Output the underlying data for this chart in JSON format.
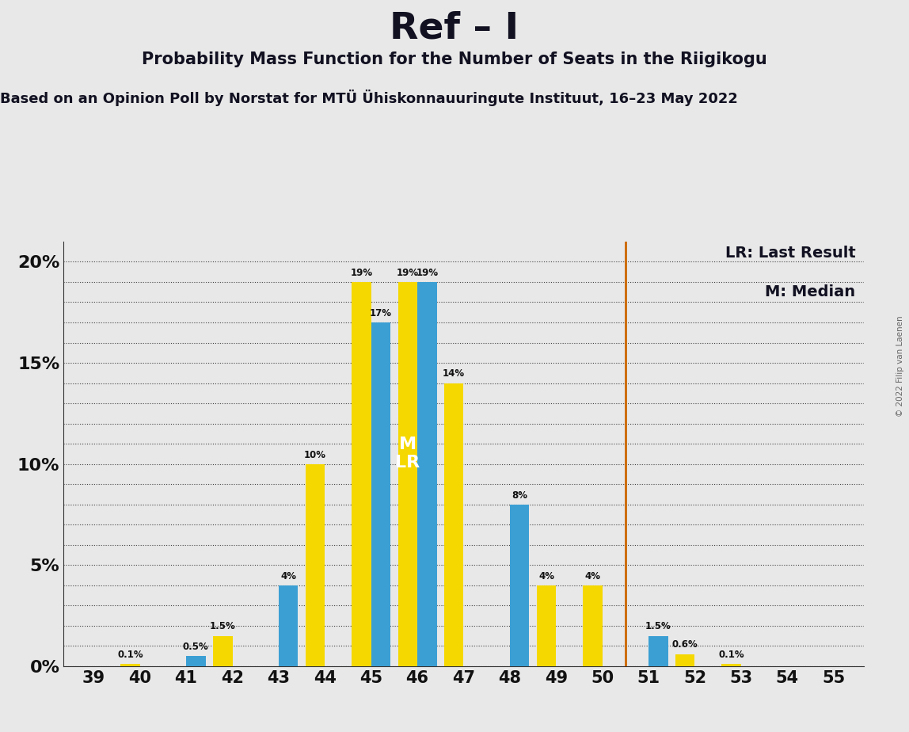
{
  "title": "Ref – I",
  "subtitle": "Probability Mass Function for the Number of Seats in the Riigikogu",
  "source_line": "Based on an Opinion Poll by Norstat for MTÜ Ühiskonnauuringute Instituut, 16–23 May 2022",
  "copyright": "© 2022 Filip van Laenen",
  "seats": [
    39,
    40,
    41,
    42,
    43,
    44,
    45,
    46,
    47,
    48,
    49,
    50,
    51,
    52,
    53,
    54,
    55
  ],
  "blue_values": [
    0.0,
    0.0,
    0.5,
    0.0,
    4.0,
    0.0,
    17.0,
    19.0,
    0.0,
    8.0,
    0.0,
    0.0,
    1.5,
    0.0,
    0.0,
    0.0,
    0.0
  ],
  "yellow_values": [
    0.0,
    0.1,
    0.0,
    1.5,
    0.0,
    10.0,
    19.0,
    19.0,
    14.0,
    0.0,
    4.0,
    4.0,
    0.0,
    0.6,
    0.1,
    0.0,
    0.0
  ],
  "blue_color": "#3b9fd4",
  "yellow_color": "#f5d800",
  "background_color": "#e8e8e8",
  "lr_line_color": "#cc6600",
  "median_seat": 46,
  "lr_seat": 46,
  "legend_lr": "LR: Last Result",
  "legend_m": "M: Median",
  "bar_width": 0.42,
  "ylim_max": 21.0,
  "ytick_minor_step": 1.0,
  "ytick_major_positions": [
    0,
    5,
    10,
    15,
    20
  ],
  "ytick_major_labels": [
    "0%",
    "5%",
    "10%",
    "15%",
    "20%"
  ]
}
